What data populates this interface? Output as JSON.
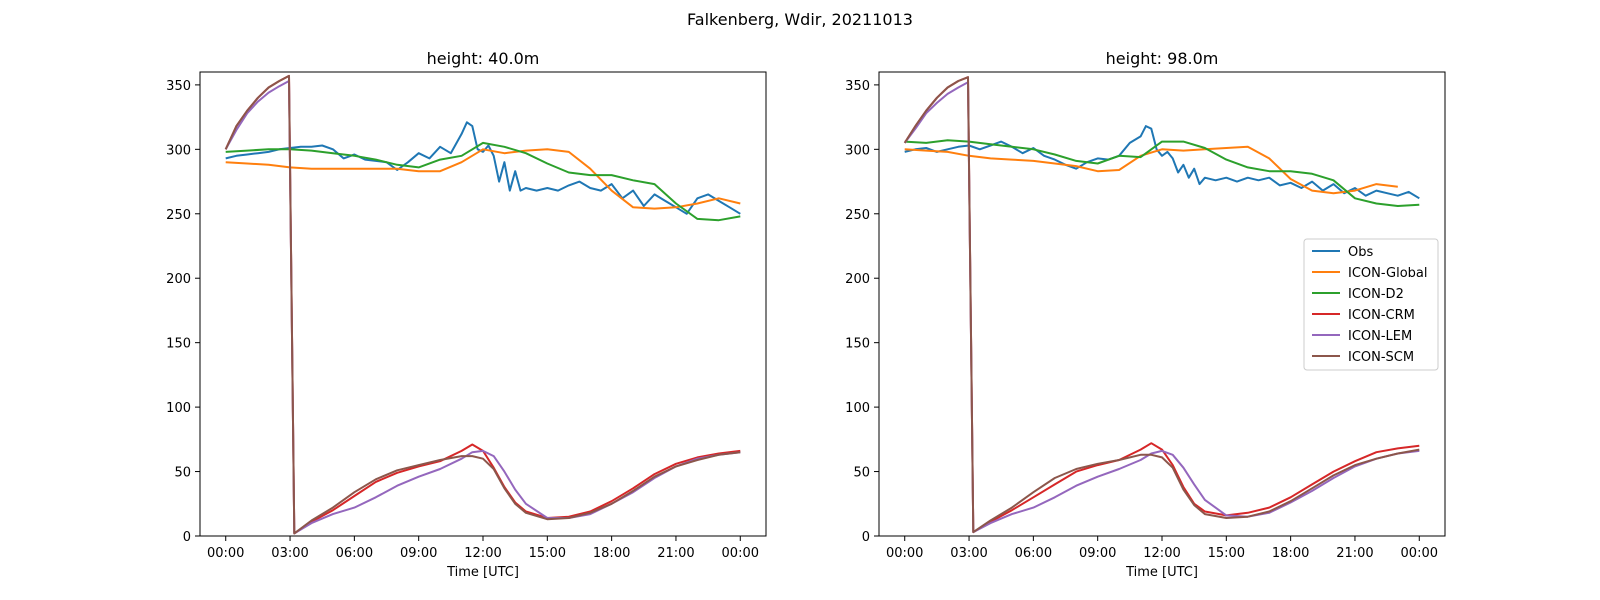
{
  "figure": {
    "suptitle": "Falkenberg, Wdir, 20211013"
  },
  "colors": {
    "Obs": "#1f77b4",
    "ICON-Global": "#ff7f0e",
    "ICON-D2": "#2ca02c",
    "ICON-CRM": "#d62728",
    "ICON-LEM": "#9467bd",
    "ICON-SCM": "#8c564b"
  },
  "legend": {
    "placement": "center-right of second panel",
    "entries": [
      "Obs",
      "ICON-Global",
      "ICON-D2",
      "ICON-CRM",
      "ICON-LEM",
      "ICON-SCM"
    ]
  },
  "chart_data": [
    {
      "type": "line",
      "title": "height: 40.0m",
      "xlabel": "Time [UTC]",
      "ylabel": "",
      "x_unit": "hours",
      "xlim": [
        -1.2,
        25.2
      ],
      "ylim": [
        0,
        360
      ],
      "xticks": [
        0,
        3,
        6,
        9,
        12,
        15,
        18,
        21,
        24
      ],
      "xtick_labels": [
        "00:00",
        "03:00",
        "06:00",
        "09:00",
        "12:00",
        "15:00",
        "18:00",
        "21:00",
        "00:00"
      ],
      "yticks": [
        0,
        50,
        100,
        150,
        200,
        250,
        300,
        350
      ],
      "ytick_labels": [
        "0",
        "50",
        "100",
        "150",
        "200",
        "250",
        "300",
        "350"
      ],
      "series": [
        {
          "name": "Obs",
          "x": [
            0,
            0.5,
            1,
            1.5,
            2,
            2.5,
            3,
            3.5,
            4,
            4.5,
            5,
            5.5,
            6,
            6.5,
            7,
            7.5,
            8,
            8.5,
            9,
            9.5,
            10,
            10.5,
            11,
            11.25,
            11.5,
            11.75,
            12,
            12.25,
            12.5,
            12.75,
            13,
            13.25,
            13.5,
            13.75,
            14,
            14.5,
            15,
            15.5,
            16,
            16.5,
            17,
            17.5,
            18,
            18.5,
            19,
            19.5,
            20,
            20.5,
            21,
            21.5,
            22,
            22.5,
            23,
            23.5,
            24
          ],
          "y": [
            293,
            295,
            296,
            297,
            298,
            300,
            301,
            302,
            302,
            303,
            300,
            293,
            296,
            292,
            291,
            290,
            284,
            290,
            297,
            293,
            302,
            297,
            312,
            321,
            318,
            300,
            298,
            303,
            295,
            275,
            290,
            268,
            283,
            268,
            270,
            268,
            270,
            268,
            272,
            275,
            270,
            268,
            273,
            262,
            268,
            256,
            265,
            260,
            255,
            250,
            262,
            265,
            260,
            255,
            250
          ]
        },
        {
          "name": "ICON-Global",
          "x": [
            0,
            1,
            2,
            3,
            4,
            5,
            6,
            7,
            8,
            9,
            10,
            11,
            12,
            13,
            14,
            15,
            16,
            17,
            18,
            19,
            20,
            21,
            22,
            23,
            24
          ],
          "y": [
            290,
            289,
            288,
            286,
            285,
            285,
            285,
            285,
            285,
            283,
            283,
            290,
            300,
            297,
            299,
            300,
            298,
            285,
            268,
            255,
            254,
            255,
            258,
            262,
            258
          ]
        },
        {
          "name": "ICON-D2",
          "x": [
            0,
            1,
            2,
            3,
            4,
            5,
            6,
            7,
            8,
            9,
            10,
            11,
            12,
            13,
            14,
            15,
            16,
            17,
            18,
            19,
            20,
            21,
            22,
            23,
            24
          ],
          "y": [
            298,
            299,
            300,
            300,
            299,
            297,
            295,
            292,
            288,
            286,
            292,
            295,
            305,
            302,
            297,
            289,
            282,
            280,
            280,
            276,
            273,
            258,
            246,
            245,
            248
          ]
        },
        {
          "name": "ICON-CRM",
          "x": [
            0,
            0.5,
            1,
            1.5,
            2,
            2.5,
            2.95,
            3.2,
            4,
            5,
            6,
            7,
            8,
            9,
            10,
            11,
            11.5,
            12,
            12.5,
            13,
            13.5,
            14,
            15,
            16,
            17,
            18,
            19,
            20,
            21,
            22,
            23,
            24
          ],
          "y": [
            300,
            318,
            330,
            340,
            348,
            353,
            357,
            2,
            11,
            20,
            31,
            42,
            49,
            54,
            58,
            66,
            71,
            66,
            53,
            38,
            26,
            19,
            14,
            15,
            19,
            27,
            37,
            48,
            56,
            61,
            64,
            66
          ]
        },
        {
          "name": "ICON-LEM",
          "x": [
            0,
            0.5,
            1,
            1.5,
            2,
            2.5,
            2.95,
            3.2,
            4,
            5,
            6,
            7,
            8,
            9,
            10,
            11,
            11.5,
            12,
            12.5,
            13,
            13.5,
            14,
            15,
            16,
            17,
            18,
            19,
            20,
            21,
            22,
            23,
            24
          ],
          "y": [
            300,
            315,
            328,
            337,
            344,
            349,
            353,
            2,
            10,
            17,
            22,
            30,
            39,
            46,
            52,
            60,
            65,
            66,
            62,
            50,
            36,
            25,
            14,
            14,
            17,
            25,
            34,
            45,
            54,
            60,
            63,
            65
          ]
        },
        {
          "name": "ICON-SCM",
          "x": [
            0,
            0.5,
            1,
            1.5,
            2,
            2.5,
            2.95,
            3.2,
            4,
            5,
            6,
            7,
            8,
            9,
            10,
            11,
            11.5,
            12,
            12.5,
            13,
            13.5,
            14,
            15,
            16,
            17,
            18,
            19,
            20,
            21,
            22,
            23,
            24
          ],
          "y": [
            300,
            318,
            330,
            340,
            348,
            353,
            357,
            2,
            12,
            22,
            34,
            44,
            51,
            55,
            59,
            62,
            62,
            60,
            52,
            37,
            25,
            18,
            13,
            14,
            18,
            25,
            35,
            46,
            54,
            59,
            63,
            65
          ]
        }
      ]
    },
    {
      "type": "line",
      "title": "height: 98.0m",
      "xlabel": "Time [UTC]",
      "ylabel": "",
      "x_unit": "hours",
      "xlim": [
        -1.2,
        25.2
      ],
      "ylim": [
        0,
        360
      ],
      "xticks": [
        0,
        3,
        6,
        9,
        12,
        15,
        18,
        21,
        24
      ],
      "xtick_labels": [
        "00:00",
        "03:00",
        "06:00",
        "09:00",
        "12:00",
        "15:00",
        "18:00",
        "21:00",
        "00:00"
      ],
      "yticks": [
        0,
        50,
        100,
        150,
        200,
        250,
        300,
        350
      ],
      "ytick_labels": [
        "0",
        "50",
        "100",
        "150",
        "200",
        "250",
        "300",
        "350"
      ],
      "series": [
        {
          "name": "Obs",
          "x": [
            0,
            0.5,
            1,
            1.5,
            2,
            2.5,
            3,
            3.5,
            4,
            4.5,
            5,
            5.5,
            6,
            6.5,
            7,
            7.5,
            8,
            8.5,
            9,
            9.5,
            10,
            10.5,
            11,
            11.25,
            11.5,
            11.75,
            12,
            12.25,
            12.5,
            12.75,
            13,
            13.25,
            13.5,
            13.75,
            14,
            14.5,
            15,
            15.5,
            16,
            16.5,
            17,
            17.5,
            18,
            18.5,
            19,
            19.5,
            20,
            20.5,
            21,
            21.5,
            22,
            22.5,
            23,
            23.5,
            24
          ],
          "y": [
            298,
            300,
            301,
            298,
            300,
            302,
            303,
            300,
            303,
            306,
            302,
            297,
            301,
            295,
            292,
            288,
            285,
            290,
            293,
            292,
            295,
            305,
            310,
            318,
            316,
            300,
            295,
            298,
            293,
            282,
            288,
            278,
            285,
            273,
            278,
            276,
            278,
            275,
            278,
            276,
            278,
            272,
            274,
            270,
            275,
            268,
            273,
            266,
            270,
            264,
            268,
            266,
            264,
            267,
            262
          ]
        },
        {
          "name": "ICON-Global",
          "x": [
            0,
            1,
            2,
            3,
            4,
            5,
            6,
            7,
            8,
            9,
            10,
            11,
            12,
            13,
            14,
            15,
            16,
            17,
            18,
            19,
            20,
            21,
            22,
            23
          ],
          "y": [
            300,
            299,
            298,
            295,
            293,
            292,
            291,
            289,
            287,
            283,
            284,
            295,
            300,
            299,
            300,
            301,
            302,
            293,
            277,
            268,
            266,
            268,
            273,
            271
          ]
        },
        {
          "name": "ICON-D2",
          "x": [
            0,
            1,
            2,
            3,
            4,
            5,
            6,
            7,
            8,
            9,
            10,
            11,
            12,
            13,
            14,
            15,
            16,
            17,
            18,
            19,
            20,
            21,
            22,
            23,
            24
          ],
          "y": [
            306,
            305,
            307,
            306,
            304,
            302,
            300,
            296,
            291,
            289,
            295,
            294,
            306,
            306,
            301,
            292,
            286,
            283,
            283,
            281,
            276,
            262,
            258,
            256,
            257
          ]
        },
        {
          "name": "ICON-CRM",
          "x": [
            0,
            0.5,
            1,
            1.5,
            2,
            2.5,
            2.95,
            3.2,
            4,
            5,
            6,
            7,
            8,
            9,
            10,
            11,
            11.5,
            12,
            12.5,
            13,
            13.5,
            14,
            15,
            16,
            17,
            18,
            19,
            20,
            21,
            22,
            23,
            24
          ],
          "y": [
            305,
            318,
            330,
            340,
            348,
            353,
            356,
            3,
            11,
            20,
            30,
            40,
            50,
            55,
            59,
            67,
            72,
            67,
            55,
            38,
            25,
            19,
            16,
            18,
            22,
            30,
            40,
            50,
            58,
            65,
            68,
            70
          ]
        },
        {
          "name": "ICON-LEM",
          "x": [
            0,
            0.5,
            1,
            1.5,
            2,
            2.5,
            2.95,
            3.2,
            4,
            5,
            6,
            7,
            8,
            9,
            10,
            11,
            11.5,
            12,
            12.5,
            13,
            13.5,
            14,
            15,
            16,
            17,
            18,
            19,
            20,
            21,
            22,
            23,
            24
          ],
          "y": [
            305,
            316,
            328,
            336,
            343,
            348,
            352,
            3,
            10,
            17,
            22,
            30,
            39,
            46,
            52,
            59,
            64,
            66,
            63,
            53,
            40,
            28,
            16,
            15,
            18,
            26,
            35,
            45,
            54,
            60,
            64,
            66
          ]
        },
        {
          "name": "ICON-SCM",
          "x": [
            0,
            0.5,
            1,
            1.5,
            2,
            2.5,
            2.95,
            3.2,
            4,
            5,
            6,
            7,
            8,
            9,
            10,
            11,
            11.5,
            12,
            12.5,
            13,
            13.5,
            14,
            15,
            16,
            17,
            18,
            19,
            20,
            21,
            22,
            23,
            24
          ],
          "y": [
            305,
            318,
            330,
            340,
            348,
            353,
            356,
            3,
            12,
            22,
            34,
            45,
            52,
            56,
            59,
            63,
            63,
            61,
            53,
            36,
            24,
            17,
            14,
            15,
            19,
            27,
            37,
            47,
            55,
            60,
            64,
            67
          ]
        }
      ]
    }
  ]
}
